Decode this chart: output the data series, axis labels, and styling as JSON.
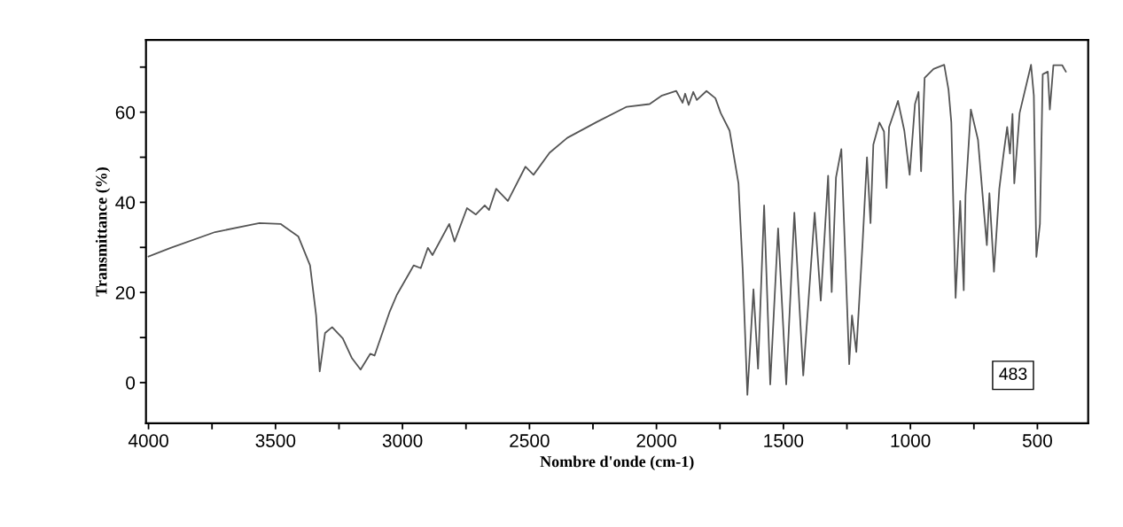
{
  "chart_data": {
    "type": "line",
    "xlabel": "Nombre d'onde (cm-1)",
    "ylabel": "Transmittance (%)",
    "annotations": [
      "483"
    ],
    "xlim": [
      4010,
      300
    ],
    "ylim": [
      -9,
      76
    ],
    "xticks": [
      4000,
      {
        "value": 3750,
        "label": null
      },
      3500,
      {
        "value": 3250,
        "label": null
      },
      3000,
      {
        "value": 2750,
        "label": null
      },
      2500,
      {
        "value": 2250,
        "label": null
      },
      2000,
      {
        "value": 1750,
        "label": null
      },
      1500,
      {
        "value": 1250,
        "label": null
      },
      1000,
      {
        "value": 750,
        "label": null
      },
      500
    ],
    "yticks": [
      0,
      {
        "value": 10,
        "label": null
      },
      20,
      {
        "value": 30,
        "label": null
      },
      40,
      {
        "value": 50,
        "label": null
      },
      60,
      {
        "value": 70,
        "label": null
      }
    ],
    "grid": false,
    "legend": false,
    "series": [
      {
        "color": "#555555",
        "x": [
          4000,
          3913,
          3738,
          3563,
          3480,
          3410,
          3364,
          3340,
          3326,
          3305,
          3277,
          3235,
          3200,
          3165,
          3127,
          3110,
          3050,
          3022,
          2970,
          2956,
          2928,
          2900,
          2882,
          2816,
          2795,
          2746,
          2711,
          2676,
          2659,
          2631,
          2585,
          2516,
          2484,
          2421,
          2351,
          2236,
          2117,
          2027,
          1978,
          1922,
          1897,
          1887,
          1873,
          1855,
          1841,
          1803,
          1768,
          1747,
          1712,
          1677,
          1660,
          1642,
          1618,
          1600,
          1576,
          1552,
          1521,
          1489,
          1457,
          1422,
          1377,
          1353,
          1324,
          1310,
          1293,
          1272,
          1241,
          1230,
          1213,
          1188,
          1171,
          1157,
          1146,
          1122,
          1104,
          1094,
          1084,
          1049,
          1024,
          1003,
          982,
          968,
          958,
          944,
          909,
          867,
          850,
          839,
          822,
          804,
          790,
          783,
          762,
          734,
          710,
          699,
          689,
          671,
          650,
          633,
          619,
          608,
          598,
          591,
          570,
          525,
          514,
          504,
          490,
          479,
          459,
          451,
          437,
          402,
          388
        ],
        "values": [
          28,
          29.9,
          33.4,
          35.4,
          35.2,
          32.4,
          26,
          14.9,
          2.5,
          11,
          12.3,
          9.8,
          5.5,
          2.9,
          6.4,
          6,
          15.8,
          19.5,
          24.6,
          26,
          25.4,
          29.9,
          28.3,
          35.2,
          31.3,
          38.7,
          37.3,
          39.3,
          38.3,
          43,
          40.3,
          47.9,
          46.1,
          51,
          54.3,
          57.8,
          61.2,
          61.8,
          63.7,
          64.7,
          62.1,
          64.1,
          61.6,
          64.5,
          62.7,
          64.7,
          63.1,
          59.8,
          55.9,
          44.2,
          24.6,
          -2.7,
          20.7,
          3.1,
          39.3,
          -0.4,
          34.2,
          -0.4,
          37.7,
          1.6,
          37.7,
          18.2,
          45.9,
          20.1,
          45.5,
          51.8,
          4.1,
          14.9,
          6.8,
          31.3,
          50,
          35.4,
          52.8,
          57.7,
          55.7,
          43.2,
          56.7,
          62.5,
          55.9,
          46.1,
          61.8,
          64.5,
          46.9,
          67.6,
          69.6,
          70.5,
          65,
          57.8,
          18.8,
          40.3,
          20.5,
          41.6,
          60.6,
          53.9,
          37.7,
          30.5,
          42,
          24.6,
          43,
          50.8,
          56.7,
          50.8,
          59.6,
          44.2,
          59.8,
          70.5,
          63.7,
          27.9,
          35.2,
          68.4,
          69,
          60.6,
          70.4,
          70.4,
          69
        ]
      }
    ]
  }
}
